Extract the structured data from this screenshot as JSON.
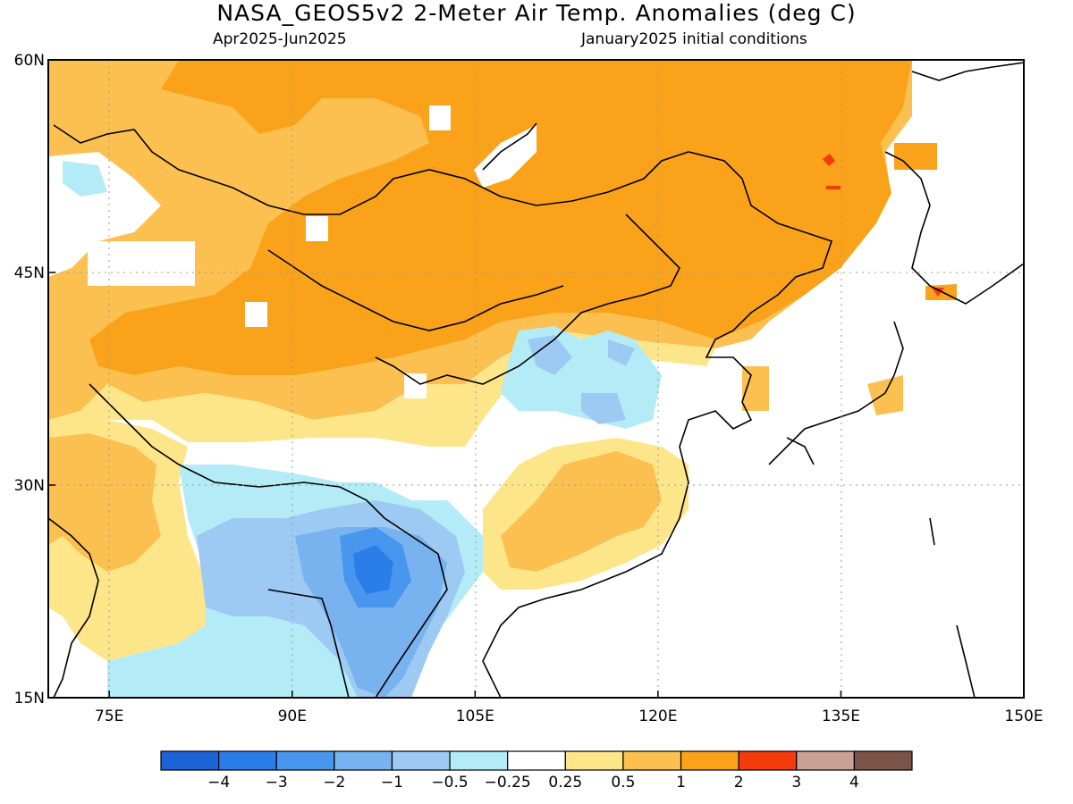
{
  "header": {
    "title": "NASA_GEOS5v2 2-Meter Air Temp. Anomalies (deg C)",
    "period": "Apr2025-Jun2025",
    "init": "January2025 initial conditions"
  },
  "map": {
    "lon_range": [
      70,
      150
    ],
    "lat_range": [
      15,
      60
    ],
    "lat_ticks": [
      {
        "value": 60,
        "label": "60N"
      },
      {
        "value": 45,
        "label": "45N"
      },
      {
        "value": 30,
        "label": "30N"
      },
      {
        "value": 15,
        "label": "15N"
      }
    ],
    "lon_ticks": [
      {
        "value": 75,
        "label": "75E"
      },
      {
        "value": 90,
        "label": "90E"
      },
      {
        "value": 105,
        "label": "105E"
      },
      {
        "value": 120,
        "label": "120E"
      },
      {
        "value": 135,
        "label": "135E"
      },
      {
        "value": 150,
        "label": "150E"
      }
    ]
  },
  "colorbar": {
    "colors": [
      "#1d64d6",
      "#2b7de8",
      "#4896ee",
      "#78b3f0",
      "#9ccaf3",
      "#b3ecf6",
      "#ffffff",
      "#fde68a",
      "#fcc050",
      "#faa21a",
      "#f53a0c",
      "#c9a296",
      "#7a5447"
    ],
    "labels": [
      "-4",
      "-3",
      "-2",
      "-1",
      "-0.5",
      "-0.25",
      "0.25",
      "0.5",
      "1",
      "2",
      "3",
      "4"
    ]
  },
  "palette": {
    "orange": "#faa21a",
    "light_orange": "#fcc050",
    "yellow": "#fde68a",
    "red": "#f53a0c",
    "cyan": "#b3ecf6",
    "light_blue": "#9ccaf3",
    "mid_blue": "#78b3f0",
    "blue": "#4896ee",
    "dark_blue": "#2b7de8"
  }
}
